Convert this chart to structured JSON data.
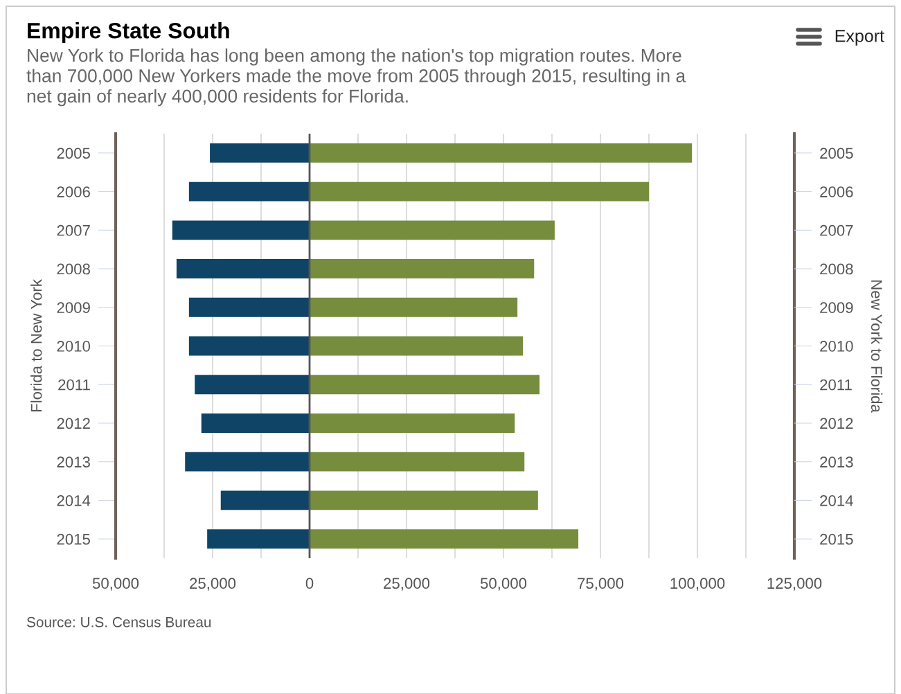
{
  "chart_data": {
    "type": "bar",
    "orientation": "horizontal",
    "stacked": true,
    "title": "Empire State South",
    "subtitle": "New York to Florida has long been among the nation's top migration routes. More\nthan 700,000 New Yorkers made the move from 2005 through 2015, resulting in a\nnet gain of nearly 400,000 residents for Florida.",
    "ylabel": "Florida to New York",
    "y2label": "New York to Florida",
    "categories": [
      "2005",
      "2006",
      "2007",
      "2008",
      "2009",
      "2010",
      "2011",
      "2012",
      "2013",
      "2014",
      "2015"
    ],
    "series": [
      {
        "color": "#0f4466",
        "values": [
          -25700,
          -31100,
          -35400,
          -34300,
          -31100,
          -31100,
          -29600,
          -27900,
          -32100,
          -22900,
          -26400
        ]
      },
      {
        "color": "#768d3e",
        "values": [
          98600,
          87500,
          63200,
          57900,
          53600,
          55000,
          59300,
          52900,
          55400,
          58900,
          69300
        ]
      }
    ],
    "xlim": [
      -50000,
      125000
    ],
    "xticks": [
      {
        "value": -50000,
        "label": "50,000"
      },
      {
        "value": -37500,
        "label": null
      },
      {
        "value": -25000,
        "label": "25,000"
      },
      {
        "value": -12500,
        "label": null
      },
      0,
      {
        "value": 12500,
        "label": null
      },
      {
        "value": 25000,
        "label": "25,000"
      },
      {
        "value": 37500,
        "label": null
      },
      {
        "value": 50000,
        "label": "50,000"
      },
      {
        "value": 62500,
        "label": null
      },
      {
        "value": 75000,
        "label": "75,000"
      },
      {
        "value": 87500,
        "label": null
      },
      {
        "value": 100000,
        "label": "100,000"
      },
      {
        "value": 112500,
        "label": null
      },
      {
        "value": 125000,
        "label": "125,000"
      }
    ],
    "ref_lines": [
      {
        "axis": "x",
        "value": 0,
        "color": "#555555"
      }
    ],
    "grid": "x",
    "annotations": [
      "Export",
      "Source: U.S. Census Bureau"
    ]
  }
}
